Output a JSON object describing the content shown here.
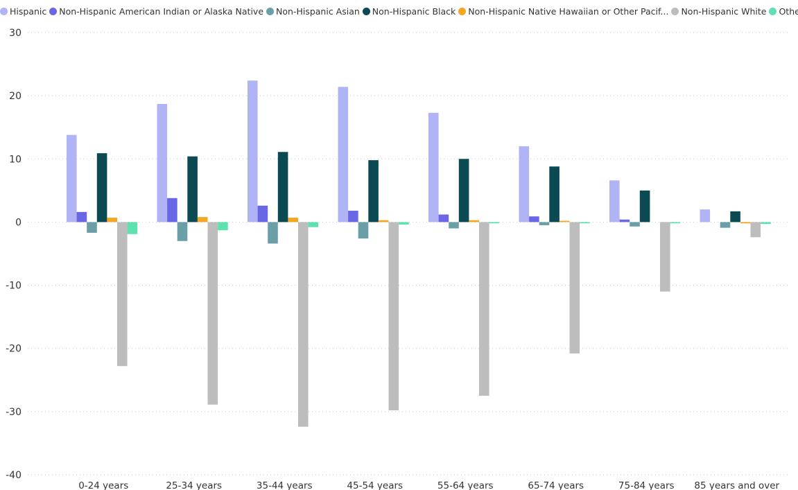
{
  "chart_data": {
    "type": "bar",
    "categories": [
      "0-24 years",
      "25-34 years",
      "35-44 years",
      "45-54 years",
      "55-64 years",
      "65-74 years",
      "75-84 years",
      "85 years and over"
    ],
    "series": [
      {
        "name": "Hispanic",
        "color": "#b0b3f4",
        "values": [
          13.8,
          18.7,
          22.4,
          21.4,
          17.3,
          12.0,
          6.6,
          2.0
        ]
      },
      {
        "name": "Non-Hispanic American Indian or Alaska Native",
        "color": "#6a67e6",
        "values": [
          1.6,
          3.8,
          2.6,
          1.8,
          1.2,
          0.9,
          0.4,
          0.0
        ]
      },
      {
        "name": "Non-Hispanic Asian",
        "color": "#6b9fa8",
        "values": [
          -1.7,
          -3.0,
          -3.4,
          -2.6,
          -1.0,
          -0.5,
          -0.7,
          -0.9
        ]
      },
      {
        "name": "Non-Hispanic Black",
        "color": "#0b4a53",
        "values": [
          10.9,
          10.4,
          11.1,
          9.8,
          10.0,
          8.8,
          5.0,
          1.7
        ]
      },
      {
        "name": "Non-Hispanic Native Hawaiian or Other Pacif...",
        "color": "#f4a623",
        "values": [
          0.7,
          0.8,
          0.7,
          0.3,
          0.3,
          0.2,
          0.0,
          -0.2
        ]
      },
      {
        "name": "Non-Hispanic White",
        "color": "#bdbdbd",
        "values": [
          -22.8,
          -28.9,
          -32.4,
          -29.8,
          -27.5,
          -20.8,
          -11.0,
          -2.4
        ]
      },
      {
        "name": "Othe",
        "color": "#5fe0b0",
        "values": [
          -1.9,
          -1.3,
          -0.8,
          -0.4,
          -0.2,
          -0.2,
          -0.2,
          -0.3
        ]
      }
    ],
    "ylim": [
      -40,
      30
    ],
    "yticks": [
      30,
      20,
      10,
      0,
      -10,
      -20,
      -30,
      -40
    ],
    "grid": true,
    "legend_position": "top"
  }
}
